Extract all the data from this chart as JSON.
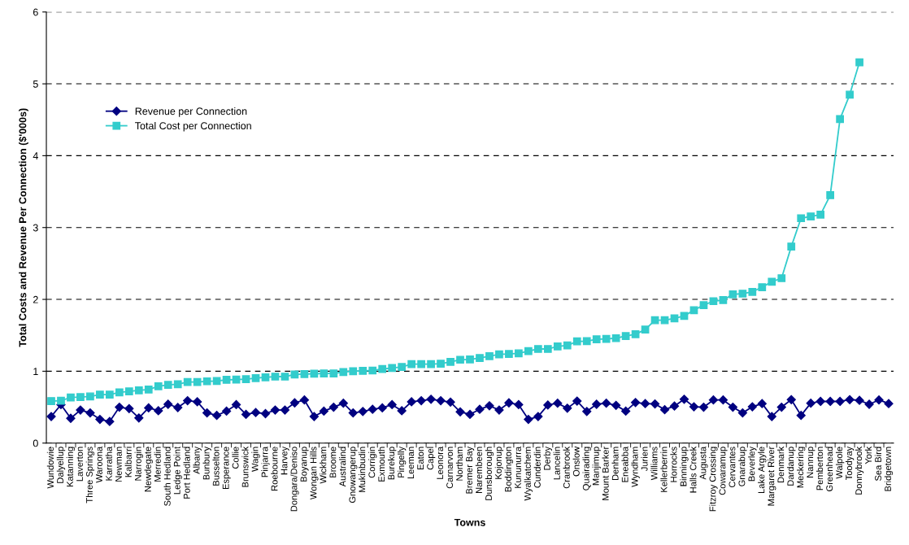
{
  "chart_data": {
    "type": "line",
    "xlabel": "Towns",
    "ylabel": "Total Costs and Revenue Per Connection ($'000s)",
    "categories": [
      "Wundowie",
      "Dalyellup",
      "Katanning",
      "Laverton",
      "Three Springs",
      "Waroona",
      "Karratha",
      "Newman",
      "Kalbarri",
      "Narrogin",
      "Newdegate",
      "Merredin",
      "South Hedland",
      "Ledge Point",
      "Port Hedland",
      "Albany",
      "Bunbury",
      "Busselton",
      "Esperance",
      "Collie",
      "Brunswick",
      "Wagin",
      "Pinjarra",
      "Roebourne",
      "Harvey",
      "Dongara/Deniso",
      "Boyanup",
      "Wongan Hills",
      "Wickham",
      "Broome",
      "Australind",
      "Gnowangerup",
      "Mukinbudin",
      "Corrigin",
      "Exmouth",
      "Burekup",
      "Pingelly",
      "Leeman",
      "Eaton",
      "Capel",
      "Leonora",
      "Carnarvon",
      "Northam",
      "Bremer Bay",
      "Narembeen",
      "Dunsborough",
      "Kojonup",
      "Boddington",
      "Kununurra",
      "Wyalkatchem",
      "Cunderdin",
      "Derby",
      "Lancelin",
      "Cranbrook",
      "Onslow",
      "Quairading",
      "Manjimup",
      "Mount Barker",
      "Denham",
      "Eneabba",
      "Wyndham",
      "Jurien",
      "Williams",
      "Kellerberrin",
      "Horrocks",
      "Binningup",
      "Halls Creek",
      "Augusta",
      "Fitzroy Crossing",
      "Cowaramup",
      "Cervantes",
      "Gnarabup",
      "Beverley",
      "Lake Argyle",
      "Margaret River",
      "Denmark",
      "Dardanup",
      "Meckering",
      "Nannup",
      "Pemberton",
      "Greenhead",
      "Walpole",
      "Toodyay",
      "Donnybrook",
      "York",
      "Sea Bird",
      "Bridgetown"
    ],
    "series": [
      {
        "name": "Revenue per Connection",
        "color": "#000080",
        "marker": "diamond",
        "values": [
          0.37,
          0.535,
          0.345,
          0.46,
          0.42,
          0.33,
          0.3,
          0.5,
          0.48,
          0.35,
          0.49,
          0.45,
          0.54,
          0.495,
          0.59,
          0.575,
          0.42,
          0.385,
          0.445,
          0.535,
          0.4,
          0.425,
          0.41,
          0.46,
          0.46,
          0.56,
          0.6,
          0.37,
          0.445,
          0.5,
          0.555,
          0.42,
          0.44,
          0.47,
          0.49,
          0.535,
          0.45,
          0.575,
          0.59,
          0.61,
          0.59,
          0.57,
          0.435,
          0.4,
          0.47,
          0.52,
          0.46,
          0.56,
          0.535,
          0.33,
          0.37,
          0.53,
          0.555,
          0.485,
          0.585,
          0.44,
          0.54,
          0.555,
          0.525,
          0.445,
          0.565,
          0.55,
          0.545,
          0.465,
          0.515,
          0.61,
          0.505,
          0.5,
          0.6,
          0.6,
          0.5,
          0.42,
          0.505,
          0.55,
          0.37,
          0.5,
          0.605,
          0.385,
          0.555,
          0.58,
          0.58,
          0.58,
          0.605,
          0.595,
          0.54,
          0.6,
          0.55
        ]
      },
      {
        "name": "Total Cost per Connection",
        "color": "#33cccc",
        "marker": "square",
        "values": [
          0.585,
          0.59,
          0.634,
          0.64,
          0.65,
          0.675,
          0.675,
          0.705,
          0.72,
          0.735,
          0.745,
          0.79,
          0.81,
          0.82,
          0.85,
          0.85,
          0.86,
          0.865,
          0.88,
          0.885,
          0.89,
          0.905,
          0.915,
          0.925,
          0.925,
          0.955,
          0.96,
          0.965,
          0.97,
          0.97,
          0.99,
          1.0,
          1.005,
          1.01,
          1.03,
          1.045,
          1.06,
          1.1,
          1.1,
          1.1,
          1.105,
          1.13,
          1.16,
          1.165,
          1.185,
          1.21,
          1.235,
          1.24,
          1.25,
          1.28,
          1.31,
          1.31,
          1.345,
          1.36,
          1.415,
          1.42,
          1.445,
          1.45,
          1.46,
          1.49,
          1.515,
          1.58,
          1.71,
          1.71,
          1.735,
          1.77,
          1.85,
          1.92,
          1.975,
          1.99,
          2.07,
          2.08,
          2.105,
          2.17,
          2.245,
          2.295,
          2.735,
          3.13,
          3.155,
          3.18,
          3.45,
          4.51,
          4.85,
          5.3,
          null,
          null,
          null
        ]
      }
    ],
    "ylim": [
      0,
      6
    ],
    "yticks": [
      0,
      1,
      2,
      3,
      4,
      5,
      6
    ],
    "grid": "y",
    "legend": "top left",
    "line_style": "solid"
  }
}
